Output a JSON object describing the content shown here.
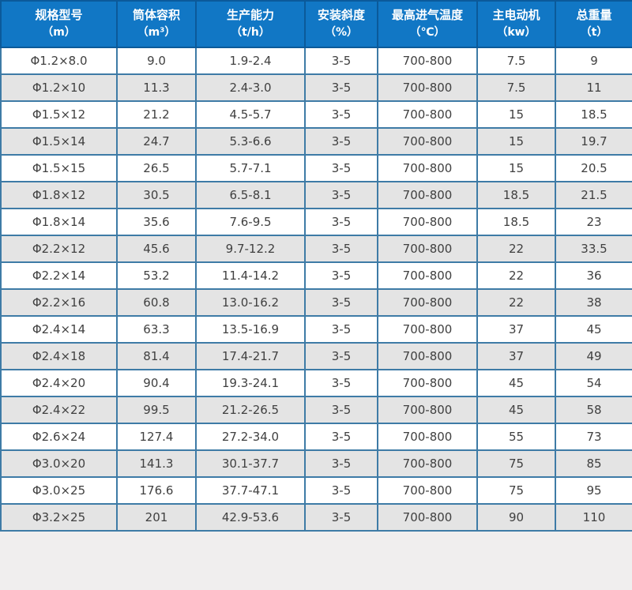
{
  "table": {
    "columns": [
      {
        "title": "规格型号",
        "unit": "（m）"
      },
      {
        "title": "筒体容积",
        "unit": "（m³）"
      },
      {
        "title": "生产能力",
        "unit": "（t/h）"
      },
      {
        "title": "安装斜度",
        "unit": "（%）"
      },
      {
        "title": "最高进气温度",
        "unit": "（℃）"
      },
      {
        "title": "主电动机",
        "unit": "（kw）"
      },
      {
        "title": "总重量",
        "unit": "（t）"
      }
    ],
    "rows": [
      [
        "Φ1.2×8.0",
        "9.0",
        "1.9-2.4",
        "3-5",
        "700-800",
        "7.5",
        "9"
      ],
      [
        "Φ1.2×10",
        "11.3",
        "2.4-3.0",
        "3-5",
        "700-800",
        "7.5",
        "11"
      ],
      [
        "Φ1.5×12",
        "21.2",
        "4.5-5.7",
        "3-5",
        "700-800",
        "15",
        "18.5"
      ],
      [
        "Φ1.5×14",
        "24.7",
        "5.3-6.6",
        "3-5",
        "700-800",
        "15",
        "19.7"
      ],
      [
        "Φ1.5×15",
        "26.5",
        "5.7-7.1",
        "3-5",
        "700-800",
        "15",
        "20.5"
      ],
      [
        "Φ1.8×12",
        "30.5",
        "6.5-8.1",
        "3-5",
        "700-800",
        "18.5",
        "21.5"
      ],
      [
        "Φ1.8×14",
        "35.6",
        "7.6-9.5",
        "3-5",
        "700-800",
        "18.5",
        "23"
      ],
      [
        "Φ2.2×12",
        "45.6",
        "9.7-12.2",
        "3-5",
        "700-800",
        "22",
        "33.5"
      ],
      [
        "Φ2.2×14",
        "53.2",
        "11.4-14.2",
        "3-5",
        "700-800",
        "22",
        "36"
      ],
      [
        "Φ2.2×16",
        "60.8",
        "13.0-16.2",
        "3-5",
        "700-800",
        "22",
        "38"
      ],
      [
        "Φ2.4×14",
        "63.3",
        "13.5-16.9",
        "3-5",
        "700-800",
        "37",
        "45"
      ],
      [
        "Φ2.4×18",
        "81.4",
        "17.4-21.7",
        "3-5",
        "700-800",
        "37",
        "49"
      ],
      [
        "Φ2.4×20",
        "90.4",
        "19.3-24.1",
        "3-5",
        "700-800",
        "45",
        "54"
      ],
      [
        "Φ2.4×22",
        "99.5",
        "21.2-26.5",
        "3-5",
        "700-800",
        "45",
        "58"
      ],
      [
        "Φ2.6×24",
        "127.4",
        "27.2-34.0",
        "3-5",
        "700-800",
        "55",
        "73"
      ],
      [
        "Φ3.0×20",
        "141.3",
        "30.1-37.7",
        "3-5",
        "700-800",
        "75",
        "85"
      ],
      [
        "Φ3.0×25",
        "176.6",
        "37.7-47.1",
        "3-5",
        "700-800",
        "75",
        "95"
      ],
      [
        "Φ3.2×25",
        "201",
        "42.9-53.6",
        "3-5",
        "700-800",
        "90",
        "110"
      ]
    ]
  },
  "colors": {
    "header_bg": "#1177c5",
    "header_divider": "#0b5a9a",
    "outer_border": "#0b5a9a",
    "cell_border": "#3e7ba6",
    "row_bg": "#ffffff",
    "row_alt_bg": "#e4e4e4",
    "text": "#404040",
    "header_text": "#ffffff",
    "page_bg": "#f0eeee"
  }
}
